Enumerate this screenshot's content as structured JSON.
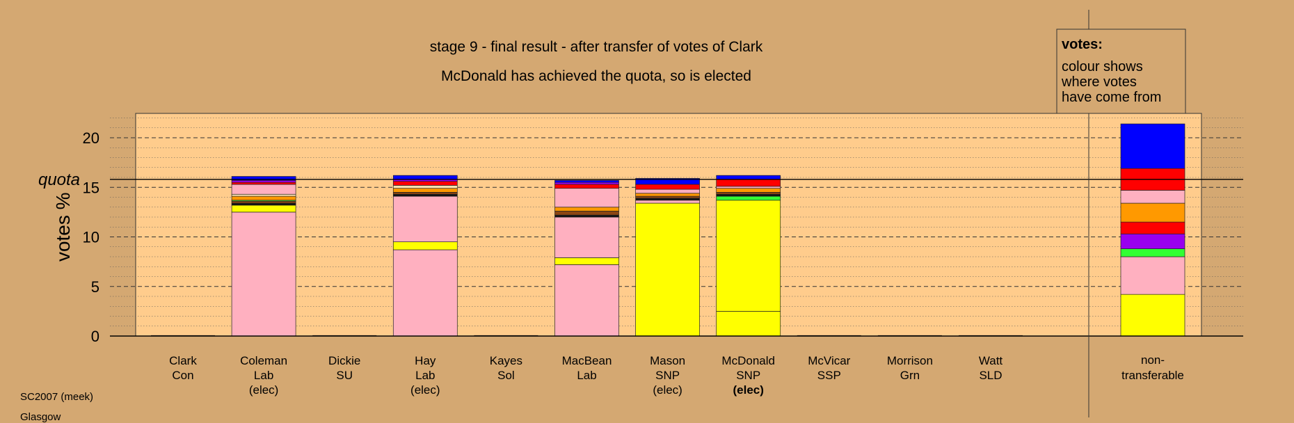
{
  "chart_data": {
    "type": "bar",
    "title": "stage 9 - final result - after transfer of votes of Clark",
    "subtitle": "McDonald has achieved the quota, so is elected",
    "ylabel": "votes %",
    "quota_label": "quota",
    "quota": 15.8,
    "ylim": [
      0,
      22.5
    ],
    "yticks": [
      0,
      5,
      10,
      15,
      20
    ],
    "grid": true,
    "legend": {
      "title": "votes:",
      "lines": [
        "colour shows",
        "where votes",
        "have come from"
      ],
      "position": "top-right"
    },
    "colors": {
      "pink": "#ffb0c0",
      "yellow": "#ffff00",
      "blue": "#0000ff",
      "red": "#ff0000",
      "orange": "#ff9900",
      "purple": "#9900ee",
      "green": "#33ff33",
      "brown": "#8b4513",
      "black": "#111111",
      "cream": "#ffe4b0"
    },
    "candidates": [
      {
        "name": "Clark",
        "party": "Con",
        "status": "",
        "segments": []
      },
      {
        "name": "Coleman",
        "party": "Lab",
        "status": "(elec)",
        "segments": [
          {
            "value": 12.5,
            "color": "pink"
          },
          {
            "value": 0.7,
            "color": "yellow"
          },
          {
            "value": 0.2,
            "color": "black"
          },
          {
            "value": 0.2,
            "color": "brown"
          },
          {
            "value": 0.1,
            "color": "green"
          },
          {
            "value": 0.4,
            "color": "orange"
          },
          {
            "value": 0.2,
            "color": "cream"
          },
          {
            "value": 1.0,
            "color": "pink"
          },
          {
            "value": 0.2,
            "color": "red"
          },
          {
            "value": 0.2,
            "color": "purple"
          },
          {
            "value": 0.4,
            "color": "blue"
          }
        ]
      },
      {
        "name": "Dickie",
        "party": "SU",
        "status": "",
        "segments": []
      },
      {
        "name": "Hay",
        "party": "Lab",
        "status": "(elec)",
        "segments": [
          {
            "value": 8.7,
            "color": "pink"
          },
          {
            "value": 0.8,
            "color": "yellow"
          },
          {
            "value": 4.6,
            "color": "pink"
          },
          {
            "value": 0.2,
            "color": "black"
          },
          {
            "value": 0.2,
            "color": "brown"
          },
          {
            "value": 0.4,
            "color": "orange"
          },
          {
            "value": 0.3,
            "color": "cream"
          },
          {
            "value": 0.4,
            "color": "red"
          },
          {
            "value": 0.2,
            "color": "purple"
          },
          {
            "value": 0.4,
            "color": "blue"
          }
        ]
      },
      {
        "name": "Kayes",
        "party": "Sol",
        "status": "",
        "segments": []
      },
      {
        "name": "MacBean",
        "party": "Lab",
        "status": "",
        "segments": [
          {
            "value": 7.2,
            "color": "pink"
          },
          {
            "value": 0.7,
            "color": "yellow"
          },
          {
            "value": 4.1,
            "color": "pink"
          },
          {
            "value": 0.2,
            "color": "black"
          },
          {
            "value": 0.4,
            "color": "brown"
          },
          {
            "value": 0.4,
            "color": "orange"
          },
          {
            "value": 1.9,
            "color": "pink"
          },
          {
            "value": 0.4,
            "color": "red"
          },
          {
            "value": 0.2,
            "color": "purple"
          },
          {
            "value": 0.2,
            "color": "blue"
          }
        ]
      },
      {
        "name": "Mason",
        "party": "SNP",
        "status": "(elec)",
        "segments": [
          {
            "value": 13.4,
            "color": "yellow"
          },
          {
            "value": 0.3,
            "color": "pink"
          },
          {
            "value": 0.2,
            "color": "black"
          },
          {
            "value": 0.2,
            "color": "brown"
          },
          {
            "value": 0.3,
            "color": "orange"
          },
          {
            "value": 0.4,
            "color": "pink"
          },
          {
            "value": 0.5,
            "color": "red"
          },
          {
            "value": 0.6,
            "color": "blue"
          }
        ]
      },
      {
        "name": "McDonald",
        "party": "SNP",
        "status": "(elec)",
        "status_bold": true,
        "segments": [
          {
            "value": 2.5,
            "color": "yellow"
          },
          {
            "value": 11.2,
            "color": "yellow"
          },
          {
            "value": 0.4,
            "color": "green"
          },
          {
            "value": 0.2,
            "color": "black"
          },
          {
            "value": 0.2,
            "color": "brown"
          },
          {
            "value": 0.4,
            "color": "orange"
          },
          {
            "value": 0.2,
            "color": "pink"
          },
          {
            "value": 0.7,
            "color": "red"
          },
          {
            "value": 0.4,
            "color": "blue"
          }
        ]
      },
      {
        "name": "McVicar",
        "party": "SSP",
        "status": "",
        "segments": []
      },
      {
        "name": "Morrison",
        "party": "Grn",
        "status": "",
        "segments": []
      },
      {
        "name": "Watt",
        "party": "SLD",
        "status": "",
        "segments": []
      }
    ],
    "nontransferable": {
      "label": [
        "non-",
        "transferable"
      ],
      "segments": [
        {
          "value": 4.2,
          "color": "yellow"
        },
        {
          "value": 3.8,
          "color": "pink"
        },
        {
          "value": 0.8,
          "color": "green"
        },
        {
          "value": 1.5,
          "color": "purple"
        },
        {
          "value": 1.2,
          "color": "red"
        },
        {
          "value": 1.9,
          "color": "orange"
        },
        {
          "value": 1.3,
          "color": "pink"
        },
        {
          "value": 2.2,
          "color": "red"
        },
        {
          "value": 4.5,
          "color": "blue"
        }
      ]
    }
  },
  "footer": {
    "line1": "SC2007 (meek)",
    "line2": "Glasgow"
  }
}
